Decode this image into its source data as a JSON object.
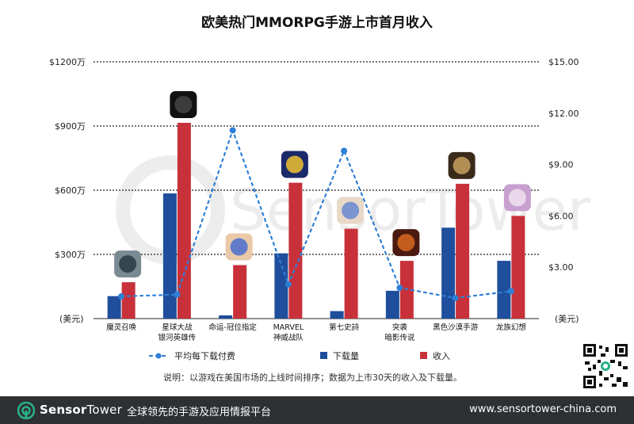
{
  "chart_data": {
    "type": "bar",
    "title": "欧美热门MMORPG手游上市首月收入",
    "categories": [
      [
        "魔灵召唤"
      ],
      [
        "星球大战",
        "银河英雄传"
      ],
      [
        "命运-冠位指定"
      ],
      [
        "MARVEL",
        "神威战队"
      ],
      [
        "第七史詩"
      ],
      [
        "突袭",
        "暗影传说"
      ],
      [
        "黑色沙漠手游"
      ],
      [
        "龙族幻想"
      ]
    ],
    "series": [
      {
        "name": "下载量",
        "type": "bar",
        "axis": "left",
        "color": "#1f4e9c",
        "values": [
          105,
          585,
          15,
          305,
          35,
          130,
          425,
          270
        ]
      },
      {
        "name": "收入",
        "type": "bar",
        "axis": "left",
        "color": "#c8313a",
        "values": [
          170,
          915,
          250,
          635,
          420,
          270,
          630,
          480
        ]
      },
      {
        "name": "平均每下载付费",
        "type": "line",
        "axis": "right",
        "color": "#2e7fd6",
        "values": [
          1.3,
          1.4,
          11.0,
          2.0,
          9.8,
          1.8,
          1.2,
          1.6
        ]
      }
    ],
    "left_axis": {
      "ylim": [
        0,
        1200
      ],
      "ticks": [
        {
          "value": 300,
          "label": "$300万"
        },
        {
          "value": 600,
          "label": "$600万"
        },
        {
          "value": 900,
          "label": "$900万"
        },
        {
          "value": 1200,
          "label": "$1200万"
        }
      ],
      "unit_label": "(美元)"
    },
    "right_axis": {
      "ylim": [
        0,
        15
      ],
      "ticks": [
        "$3.00",
        "$6.00",
        "$9.00",
        "$12.00",
        "$15.00"
      ],
      "unit_label": "(美元)"
    },
    "gridlines": "dotted",
    "legend_position": "bottom"
  },
  "note": "说明：以游戏在美国市场的上线时间排序；数据为上市30天的收入及下载量。",
  "watermark": "SensorTower",
  "footer": {
    "brand_sensor": "Sensor",
    "brand_tower": "Tower",
    "tagline": "全球领先的手游及应用情报平台",
    "site": "www.sensortower-china.com"
  },
  "colors": {
    "downloads": "#1f4e9c",
    "revenue": "#c8313a",
    "arpd": "#2e7fd6",
    "footer_bg": "#2e3133",
    "brand_green": "#27b18a"
  }
}
